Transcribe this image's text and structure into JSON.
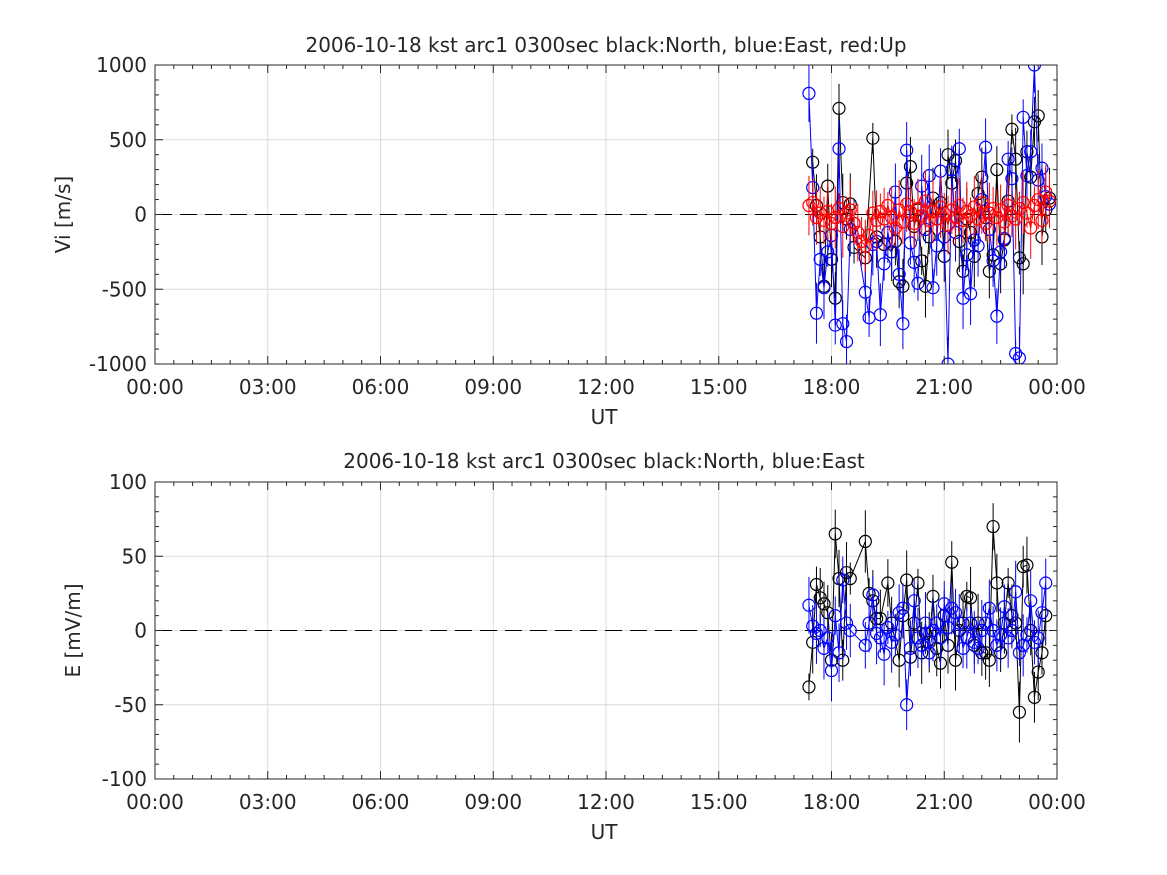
{
  "chart_data": [
    {
      "type": "scatter",
      "title": "2006-10-18 kst arc1 0300sec black:North, blue:East, red:Up",
      "xlabel": "UT",
      "ylabel": "Vi [m/s]",
      "xlim": [
        0,
        24
      ],
      "ylim": [
        -1000,
        1000
      ],
      "x_ticks": [
        0,
        3,
        6,
        9,
        12,
        15,
        18,
        21,
        24
      ],
      "x_tick_labels": [
        "00:00",
        "03:00",
        "06:00",
        "09:00",
        "12:00",
        "15:00",
        "18:00",
        "21:00",
        "00:00"
      ],
      "y_ticks": [
        1000,
        500,
        0,
        -500,
        -1000
      ],
      "y_tick_labels": [
        "1000",
        "500",
        "0",
        "-500",
        "-1000"
      ],
      "grid": true,
      "reference_line": 0,
      "series": [
        {
          "color": "#000000",
          "x": [
            17.5,
            17.6,
            17.7,
            17.8,
            17.9,
            18.0,
            18.1,
            18.2,
            18.3,
            18.4,
            18.5,
            18.6,
            18.9,
            19.1,
            19.2,
            19.4,
            19.6,
            19.7,
            19.8,
            19.9,
            20.0,
            20.1,
            20.2,
            20.3,
            20.4,
            20.5,
            20.6,
            20.7,
            20.8,
            20.9,
            21.0,
            21.1,
            21.2,
            21.3,
            21.4,
            21.5,
            21.6,
            21.7,
            21.8,
            21.9,
            22.0,
            22.1,
            22.2,
            22.3,
            22.4,
            22.5,
            22.6,
            22.7,
            22.8,
            22.9,
            23.0,
            23.1,
            23.2,
            23.3,
            23.4,
            23.5,
            23.6,
            23.7,
            23.8
          ],
          "y": [
            350,
            60,
            -150,
            -480,
            190,
            -300,
            -560,
            710,
            80,
            -30,
            70,
            -220,
            -290,
            510,
            -150,
            -200,
            -250,
            -180,
            -450,
            -480,
            210,
            320,
            -80,
            30,
            -310,
            -480,
            -150,
            110,
            -30,
            80,
            -280,
            400,
            210,
            360,
            -180,
            -380,
            -30,
            -120,
            -280,
            140,
            250,
            -20,
            -380,
            -270,
            300,
            -330,
            -170,
            90,
            570,
            370,
            -290,
            -330,
            420,
            250,
            620,
            660,
            -150,
            30,
            110
          ]
        },
        {
          "color": "#0000ff",
          "x": [
            17.4,
            17.5,
            17.6,
            17.7,
            17.8,
            17.9,
            18.0,
            18.1,
            18.2,
            18.3,
            18.4,
            18.5,
            18.6,
            18.9,
            19.0,
            19.1,
            19.2,
            19.3,
            19.4,
            19.5,
            19.6,
            19.7,
            19.8,
            19.9,
            20.0,
            20.1,
            20.2,
            20.3,
            20.4,
            20.5,
            20.6,
            20.7,
            20.8,
            20.9,
            21.0,
            21.1,
            21.2,
            21.3,
            21.4,
            21.5,
            21.6,
            21.7,
            21.8,
            21.9,
            22.0,
            22.1,
            22.2,
            22.3,
            22.4,
            22.5,
            22.6,
            22.7,
            22.8,
            22.9,
            23.0,
            23.1,
            23.2,
            23.3,
            23.4,
            23.5,
            23.6,
            23.7,
            23.8
          ],
          "y": [
            810,
            180,
            -660,
            -300,
            -490,
            -250,
            -140,
            -740,
            440,
            -730,
            -850,
            -100,
            -60,
            -520,
            -690,
            -200,
            -180,
            -670,
            -330,
            -120,
            -250,
            150,
            -400,
            -730,
            430,
            -190,
            -320,
            -460,
            190,
            -100,
            260,
            -490,
            -210,
            290,
            -150,
            -1000,
            300,
            -120,
            440,
            -560,
            -270,
            -530,
            -170,
            -210,
            100,
            450,
            -100,
            -310,
            -680,
            -250,
            -160,
            370,
            240,
            -930,
            -960,
            650,
            260,
            420,
            1000,
            230,
            310,
            120,
            70
          ]
        },
        {
          "color": "#ff0000",
          "x": [
            17.4,
            17.5,
            17.6,
            17.7,
            17.8,
            17.9,
            18.0,
            18.1,
            18.2,
            18.3,
            18.4,
            18.5,
            18.6,
            18.7,
            18.8,
            18.9,
            19.0,
            19.1,
            19.2,
            19.3,
            19.4,
            19.5,
            19.6,
            19.7,
            19.8,
            19.9,
            20.0,
            20.1,
            20.2,
            20.3,
            20.4,
            20.5,
            20.6,
            20.7,
            20.8,
            20.9,
            21.0,
            21.1,
            21.2,
            21.3,
            21.4,
            21.5,
            21.6,
            21.7,
            21.8,
            21.9,
            22.0,
            22.1,
            22.2,
            22.3,
            22.4,
            22.5,
            22.6,
            22.7,
            22.8,
            22.9,
            23.0,
            23.1,
            23.2,
            23.3,
            23.4,
            23.5,
            23.6,
            23.7,
            23.8
          ],
          "y": [
            60,
            80,
            -20,
            10,
            -40,
            20,
            -60,
            -20,
            40,
            -80,
            10,
            30,
            -60,
            -120,
            -180,
            -210,
            -140,
            10,
            -40,
            20,
            -30,
            60,
            -20,
            -90,
            30,
            -50,
            70,
            20,
            -60,
            40,
            -10,
            90,
            -40,
            20,
            -30,
            50,
            10,
            -70,
            30,
            -20,
            60,
            -40,
            20,
            -10,
            50,
            -30,
            80,
            -60,
            10,
            40,
            -20,
            30,
            -50,
            60,
            -10,
            -30,
            40,
            80,
            10,
            -90,
            60,
            100,
            -40,
            150,
            90
          ]
        }
      ]
    },
    {
      "type": "scatter",
      "title": "2006-10-18 kst arc1 0300sec black:North, blue:East",
      "xlabel": "UT",
      "ylabel": "E [mV/m]",
      "xlim": [
        0,
        24
      ],
      "ylim": [
        -100,
        100
      ],
      "x_ticks": [
        0,
        3,
        6,
        9,
        12,
        15,
        18,
        21,
        24
      ],
      "x_tick_labels": [
        "00:00",
        "03:00",
        "06:00",
        "09:00",
        "12:00",
        "15:00",
        "18:00",
        "21:00",
        "00:00"
      ],
      "y_ticks": [
        100,
        50,
        0,
        -50,
        -100
      ],
      "y_tick_labels": [
        "100",
        "50",
        "0",
        "-50",
        "-100"
      ],
      "grid": true,
      "reference_line": 0,
      "series": [
        {
          "color": "#000000",
          "x": [
            17.4,
            17.5,
            17.6,
            17.7,
            17.8,
            17.9,
            18.0,
            18.1,
            18.2,
            18.3,
            18.4,
            18.5,
            18.9,
            19.0,
            19.1,
            19.2,
            19.3,
            19.5,
            19.6,
            19.8,
            19.9,
            20.0,
            20.1,
            20.2,
            20.3,
            20.4,
            20.5,
            20.6,
            20.7,
            20.8,
            20.9,
            21.0,
            21.1,
            21.2,
            21.3,
            21.4,
            21.5,
            21.6,
            21.7,
            21.8,
            21.9,
            22.0,
            22.1,
            22.2,
            22.3,
            22.4,
            22.5,
            22.6,
            22.7,
            22.8,
            22.9,
            23.0,
            23.1,
            23.2,
            23.3,
            23.4,
            23.5,
            23.6,
            23.7
          ],
          "y": [
            -38,
            -8,
            31,
            22,
            18,
            12,
            -20,
            65,
            35,
            -20,
            39,
            35,
            60,
            25,
            20,
            8,
            8,
            32,
            5,
            -20,
            10,
            34,
            -18,
            5,
            32,
            -15,
            -2,
            -8,
            23,
            -12,
            -22,
            10,
            -10,
            46,
            -20,
            0,
            5,
            23,
            22,
            -10,
            5,
            -15,
            -15,
            -20,
            70,
            32,
            -15,
            5,
            32,
            10,
            5,
            -55,
            43,
            44,
            0,
            -45,
            -28,
            -15,
            10
          ]
        },
        {
          "color": "#0000ff",
          "x": [
            17.4,
            17.5,
            17.6,
            17.7,
            17.8,
            17.9,
            18.0,
            18.1,
            18.2,
            18.3,
            18.4,
            18.5,
            18.9,
            19.0,
            19.1,
            19.2,
            19.3,
            19.4,
            19.5,
            19.6,
            19.7,
            19.8,
            19.9,
            20.0,
            20.1,
            20.2,
            20.3,
            20.4,
            20.5,
            20.6,
            20.7,
            20.8,
            20.9,
            21.0,
            21.1,
            21.2,
            21.3,
            21.4,
            21.5,
            21.6,
            21.7,
            21.8,
            21.9,
            22.0,
            22.1,
            22.2,
            22.3,
            22.4,
            22.5,
            22.6,
            22.7,
            22.8,
            22.9,
            23.0,
            23.1,
            23.2,
            23.3,
            23.4,
            23.5,
            23.6,
            23.7
          ],
          "y": [
            17,
            3,
            -2,
            0,
            -12,
            -5,
            -27,
            10,
            -15,
            34,
            5,
            0,
            -10,
            5,
            24,
            -2,
            -5,
            -16,
            2,
            -8,
            -3,
            12,
            15,
            -50,
            -12,
            20,
            -5,
            -10,
            5,
            -15,
            0,
            5,
            -5,
            18,
            2,
            15,
            12,
            5,
            -12,
            -5,
            5,
            -8,
            -12,
            0,
            5,
            15,
            0,
            -10,
            -3,
            16,
            -5,
            0,
            26,
            -15,
            -10,
            -3,
            20,
            -8,
            -5,
            12,
            32
          ]
        }
      ]
    }
  ]
}
